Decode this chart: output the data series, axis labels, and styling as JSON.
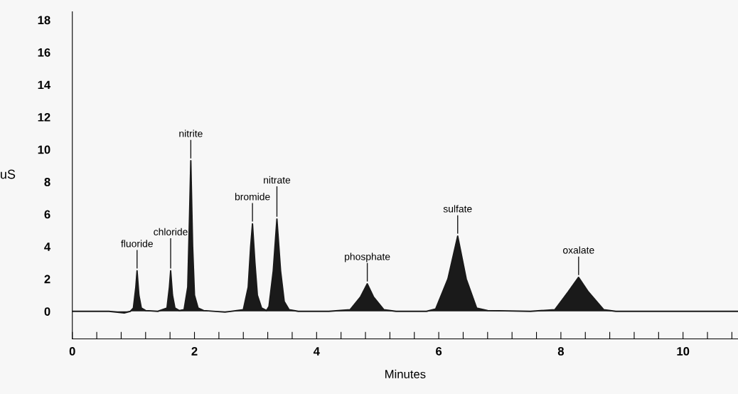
{
  "chart_data": {
    "type": "area",
    "xlabel": "Minutes",
    "ylabel": "uS",
    "x": [
      0,
      0.6,
      0.85,
      0.95,
      1.0,
      1.04,
      1.06,
      1.09,
      1.13,
      1.2,
      1.4,
      1.55,
      1.59,
      1.61,
      1.64,
      1.68,
      1.75,
      1.83,
      1.89,
      1.92,
      1.94,
      1.97,
      2.0,
      2.06,
      2.15,
      2.5,
      2.8,
      2.88,
      2.92,
      2.95,
      2.99,
      3.03,
      3.1,
      3.18,
      3.22,
      3.29,
      3.35,
      3.41,
      3.47,
      3.55,
      3.7,
      4.2,
      4.55,
      4.72,
      4.83,
      4.93,
      5.1,
      5.3,
      5.8,
      5.95,
      6.15,
      6.31,
      6.45,
      6.62,
      6.8,
      7.5,
      7.9,
      8.12,
      8.29,
      8.45,
      8.7,
      8.9,
      10.9
    ],
    "series": [
      {
        "color": "#1a1a1a",
        "values": [
          0,
          0,
          -0.1,
          0,
          0.2,
          1.5,
          2.5,
          1.0,
          0.2,
          0.05,
          0,
          0.2,
          1.5,
          2.5,
          1.0,
          0.2,
          0.05,
          0.1,
          1.5,
          6,
          9.3,
          4,
          1.0,
          0.2,
          0.05,
          -0.05,
          0.1,
          1.5,
          4,
          5.4,
          3,
          1.0,
          0.2,
          0.05,
          0.3,
          2.5,
          5.7,
          2.5,
          0.6,
          0.1,
          0,
          0,
          0.1,
          0.9,
          1.7,
          0.9,
          0.1,
          0,
          0,
          0.15,
          2.0,
          4.65,
          2.0,
          0.2,
          0.05,
          0,
          0.1,
          1.2,
          2.1,
          1.2,
          0.1,
          0,
          0
        ]
      }
    ],
    "annotations": [
      {
        "text": "fluoride",
        "x": 1.06,
        "y": 2.5
      },
      {
        "text": "chloride",
        "x": 1.61,
        "y": 2.5
      },
      {
        "text": "nitrite",
        "x": 1.94,
        "y": 9.3
      },
      {
        "text": "bromide",
        "x": 2.95,
        "y": 5.4
      },
      {
        "text": "nitrate",
        "x": 3.35,
        "y": 5.7
      },
      {
        "text": "phosphate",
        "x": 4.83,
        "y": 1.7
      },
      {
        "text": "sulfate",
        "x": 6.31,
        "y": 4.65
      },
      {
        "text": "oxalate",
        "x": 8.29,
        "y": 2.1
      }
    ],
    "xlim": [
      0,
      10.9
    ],
    "ylim": [
      -1.7,
      18.5
    ],
    "yticks": [
      0,
      2,
      4,
      6,
      8,
      10,
      12,
      14,
      16,
      18
    ],
    "xticks": [
      0,
      {
        "value": 0.4,
        "label": null
      },
      {
        "value": 0.8,
        "label": null
      },
      {
        "value": 1.2,
        "label": null
      },
      {
        "value": 1.6,
        "label": null
      },
      2,
      {
        "value": 2.4,
        "label": null
      },
      {
        "value": 2.8,
        "label": null
      },
      {
        "value": 3.2,
        "label": null
      },
      {
        "value": 3.6,
        "label": null
      },
      4,
      {
        "value": 4.4,
        "label": null
      },
      {
        "value": 4.8,
        "label": null
      },
      {
        "value": 5.2,
        "label": null
      },
      {
        "value": 5.6,
        "label": null
      },
      6,
      {
        "value": 6.4,
        "label": null
      },
      {
        "value": 6.8,
        "label": null
      },
      {
        "value": 7.2,
        "label": null
      },
      {
        "value": 7.6,
        "label": null
      },
      8,
      {
        "value": 8.4,
        "label": null
      },
      {
        "value": 8.8,
        "label": null
      },
      {
        "value": 9.2,
        "label": null
      },
      {
        "value": 9.6,
        "label": null
      },
      10,
      {
        "value": 10.4,
        "label": null
      },
      {
        "value": 10.8,
        "label": null
      }
    ],
    "grid": false,
    "legend": false
  }
}
